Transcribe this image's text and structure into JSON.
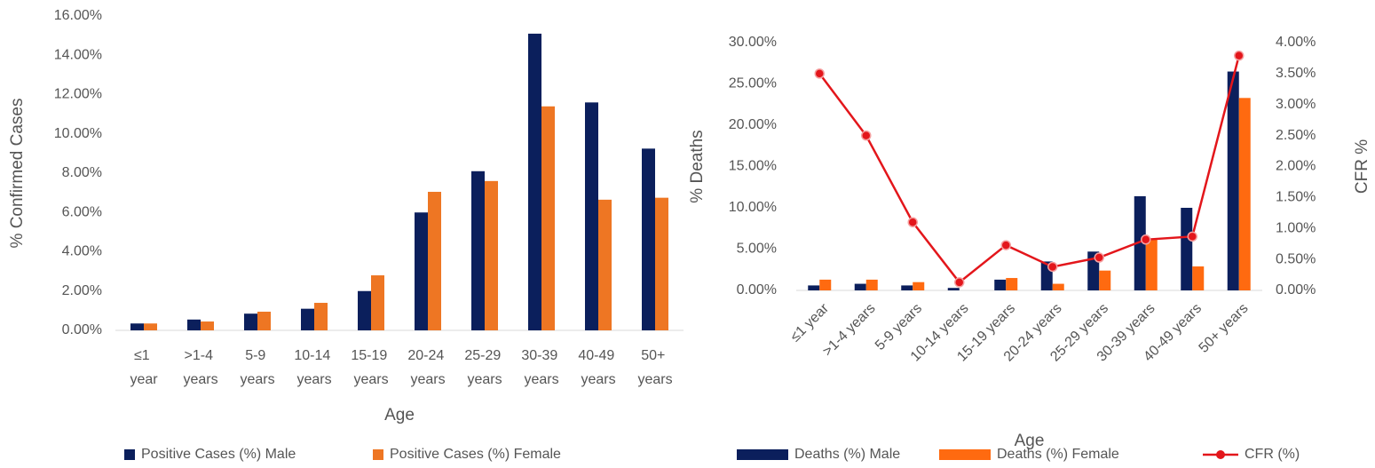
{
  "chart_data": [
    {
      "type": "bar",
      "ylabel": "% Confirmed Cases",
      "xlabel": "Age",
      "categories": [
        "≤1 year",
        ">1-4 years",
        "5-9 years",
        "10-14 years",
        "15-19 years",
        "20-24 years",
        "25-29 years",
        "30-39 years",
        "40-49 years",
        "50+ years"
      ],
      "series": [
        {
          "name": "Positive Cases (%) Male",
          "color": "#0b1f5c",
          "values": [
            0.35,
            0.55,
            0.85,
            1.1,
            2.0,
            6.0,
            8.1,
            15.1,
            11.6,
            9.25
          ]
        },
        {
          "name": "Positive Cases (%) Female",
          "color": "#ee7623",
          "values": [
            0.35,
            0.45,
            0.95,
            1.4,
            2.8,
            7.05,
            7.6,
            11.4,
            6.65,
            6.75
          ]
        }
      ],
      "ylim": [
        0,
        16
      ],
      "yticks": [
        {
          "value": 0,
          "label": "0.00%"
        },
        {
          "value": 2,
          "label": "2.00%"
        },
        {
          "value": 4,
          "label": "4.00%"
        },
        {
          "value": 6,
          "label": "6.00%"
        },
        {
          "value": 8,
          "label": "8.00%"
        },
        {
          "value": 10,
          "label": "10.00%"
        },
        {
          "value": 12,
          "label": "12.00%"
        },
        {
          "value": 14,
          "label": "14.00%"
        },
        {
          "value": 16,
          "label": "16.00%"
        }
      ],
      "legend": "bottom"
    },
    {
      "type": "bar",
      "ylabel": "% Deaths",
      "y2label": "CFR %",
      "xlabel": "Age",
      "categories": [
        "≤1 year",
        ">1-4 years",
        "5-9 years",
        "10-14 years",
        "15-19 years",
        "20-24 years",
        "25-29 years",
        "30-39 years",
        "40-49 years",
        "50+ years"
      ],
      "series": [
        {
          "name": "Deaths (%) Male",
          "color": "#0b1f5c",
          "values": [
            0.6,
            0.8,
            0.6,
            0.3,
            1.3,
            3.5,
            4.7,
            11.4,
            10.0,
            26.5
          ]
        },
        {
          "name": "Deaths (%) Female",
          "color": "#ff6a10",
          "values": [
            1.3,
            1.3,
            1.0,
            0,
            1.5,
            0.8,
            2.4,
            6.2,
            2.9,
            23.3
          ]
        },
        {
          "name": "CFR (%)",
          "type": "line",
          "axis": "y2",
          "color": "#e3161b",
          "values": [
            3.5,
            2.5,
            1.1,
            0.13,
            0.73,
            0.38,
            0.53,
            0.82,
            0.87,
            3.79
          ]
        }
      ],
      "ylim": [
        0,
        30
      ],
      "yticks": [
        {
          "value": 0,
          "label": "0.00%"
        },
        {
          "value": 5,
          "label": "5.00%"
        },
        {
          "value": 10,
          "label": "10.00%"
        },
        {
          "value": 15,
          "label": "15.00%"
        },
        {
          "value": 20,
          "label": "20.00%"
        },
        {
          "value": 25,
          "label": "25.00%"
        },
        {
          "value": 30,
          "label": "30.00%"
        }
      ],
      "y2lim": [
        0,
        4
      ],
      "y2ticks": [
        {
          "value": 0,
          "label": "0.00%"
        },
        {
          "value": 0.5,
          "label": "0.50%"
        },
        {
          "value": 1,
          "label": "1.00%"
        },
        {
          "value": 1.5,
          "label": "1.50%"
        },
        {
          "value": 2,
          "label": "2.00%"
        },
        {
          "value": 2.5,
          "label": "2.50%"
        },
        {
          "value": 3,
          "label": "3.00%"
        },
        {
          "value": 3.5,
          "label": "3.50%"
        },
        {
          "value": 4,
          "label": "4.00%"
        }
      ],
      "legend": "bottom"
    }
  ]
}
